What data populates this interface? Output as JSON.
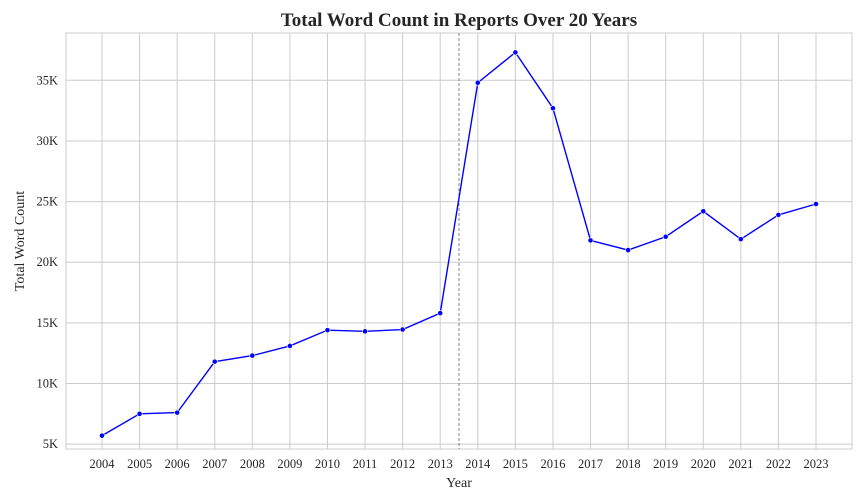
{
  "chart_data": {
    "type": "line",
    "title": "Total Word Count in Reports Over 20 Years",
    "xlabel": "Year",
    "ylabel": "Total Word Count",
    "x": [
      "2004",
      "2005",
      "2006",
      "2007",
      "2008",
      "2009",
      "2010",
      "2011",
      "2012",
      "2013",
      "2014",
      "2015",
      "2016",
      "2017",
      "2018",
      "2019",
      "2020",
      "2021",
      "2022",
      "2023"
    ],
    "series": [
      {
        "values": [
          5700,
          7500,
          7600,
          11800,
          12300,
          13100,
          14400,
          14300,
          14450,
          15800,
          34800,
          37300,
          32700,
          21800,
          21000,
          22100,
          24200,
          21900,
          23900,
          24800
        ],
        "color": "#0000ff"
      }
    ],
    "ylim": [
      4600,
      38900
    ],
    "yticks": [
      5000,
      10000,
      15000,
      20000,
      25000,
      30000,
      35000
    ],
    "ytick_labels": [
      "5K",
      "10K",
      "15K",
      "20K",
      "25K",
      "30K",
      "35K"
    ],
    "vline": {
      "between": [
        "2013",
        "2014"
      ],
      "color": "#777777",
      "style": "dashed"
    },
    "grid": true
  }
}
